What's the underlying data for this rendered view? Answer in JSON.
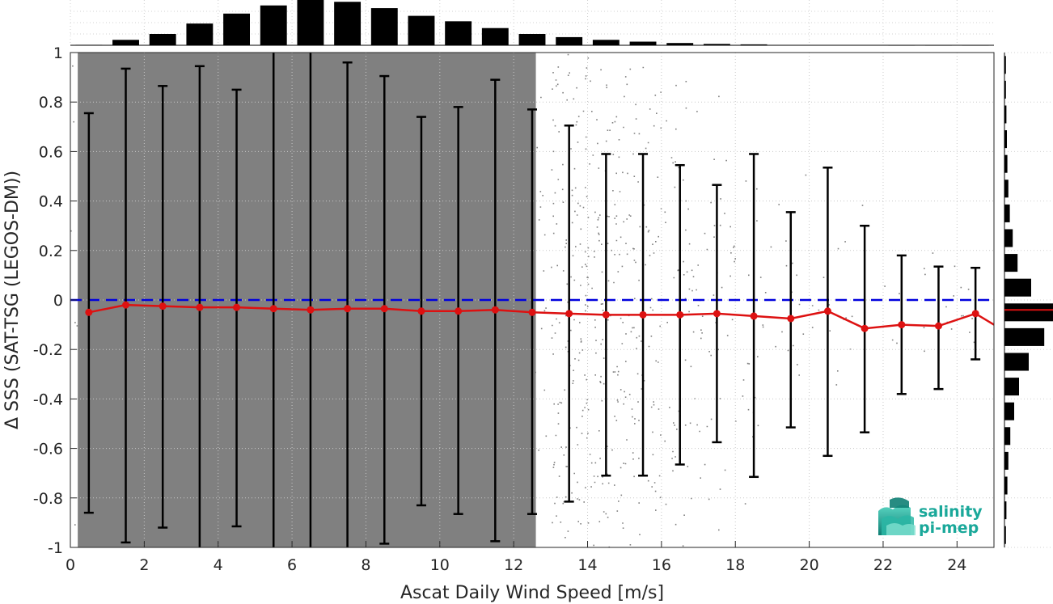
{
  "chart_data": {
    "type": "scatter",
    "xlabel": "Ascat Daily Wind Speed [m/s]",
    "ylabel": "Δ SSS (SAT-TSG (LEGOS-DM))",
    "xlim": [
      0,
      25
    ],
    "ylim": [
      -1,
      1
    ],
    "xticks": [
      0,
      2,
      4,
      6,
      8,
      10,
      12,
      14,
      16,
      18,
      20,
      22,
      24
    ],
    "yticks": [
      -1,
      -0.8,
      -0.6,
      -0.4,
      -0.2,
      0,
      0.2,
      0.4,
      0.6,
      0.8,
      1
    ],
    "ytick_labels": [
      "-1",
      "-0.8",
      "-0.6",
      "-0.4",
      "-0.2",
      "0",
      "0.2",
      "0.4",
      "0.6",
      "0.8",
      "1"
    ],
    "grid": true,
    "zero_line": {
      "y": 0,
      "color": "#0000dd",
      "style": "dashed"
    },
    "scatter_color": "#808080",
    "binned_series": {
      "color": "#dd1111",
      "x": [
        0.5,
        1.5,
        2.5,
        3.5,
        4.5,
        5.5,
        6.5,
        7.5,
        8.5,
        9.5,
        10.5,
        11.5,
        12.5,
        13.5,
        14.5,
        15.5,
        16.5,
        17.5,
        18.5,
        19.5,
        20.5,
        21.5,
        22.5,
        23.5,
        24.5
      ],
      "mean": [
        -0.05,
        -0.02,
        -0.025,
        -0.03,
        -0.03,
        -0.035,
        -0.04,
        -0.035,
        -0.035,
        -0.045,
        -0.045,
        -0.04,
        -0.05,
        -0.055,
        -0.06,
        -0.06,
        -0.06,
        -0.055,
        -0.065,
        -0.075,
        -0.045,
        -0.115,
        -0.1,
        -0.105,
        -0.055
      ],
      "err_low": [
        -0.86,
        -0.98,
        -0.92,
        -1.0,
        -0.915,
        -1.0,
        -1.0,
        -1.0,
        -0.985,
        -0.83,
        -0.865,
        -0.975,
        -0.865,
        -0.815,
        -0.71,
        -0.71,
        -0.665,
        -0.575,
        -0.715,
        -0.515,
        -0.63,
        -0.535,
        -0.38,
        -0.36,
        -0.24
      ],
      "err_high": [
        0.755,
        0.935,
        0.865,
        0.945,
        0.85,
        1.0,
        1.0,
        0.96,
        0.905,
        0.74,
        0.78,
        0.89,
        0.77,
        0.705,
        0.59,
        0.59,
        0.545,
        0.465,
        0.59,
        0.355,
        0.535,
        0.3,
        0.18,
        0.135,
        0.13
      ]
    },
    "top_histogram": {
      "color": "#000000",
      "x": [
        0.5,
        1.5,
        2.5,
        3.5,
        4.5,
        5.5,
        6.5,
        7.5,
        8.5,
        9.5,
        10.5,
        11.5,
        12.5,
        13.5,
        14.5,
        15.5,
        16.5,
        17.5,
        18.5,
        19.5,
        20.5,
        21.5,
        22.5,
        23.5,
        24.5
      ],
      "rel_count": [
        0.01,
        0.12,
        0.25,
        0.48,
        0.7,
        0.88,
        1.0,
        0.96,
        0.82,
        0.65,
        0.53,
        0.38,
        0.25,
        0.18,
        0.12,
        0.08,
        0.05,
        0.03,
        0.02,
        0.005,
        0.003,
        0.002,
        0.001,
        0.001,
        0.001
      ]
    },
    "right_histogram": {
      "color": "#000000",
      "median_color": "#dd1111",
      "median_y": -0.04,
      "y": [
        -0.95,
        -0.85,
        -0.75,
        -0.65,
        -0.55,
        -0.45,
        -0.35,
        -0.25,
        -0.15,
        -0.05,
        0.05,
        0.15,
        0.25,
        0.35,
        0.45,
        0.55,
        0.65,
        0.75,
        0.85,
        0.95
      ],
      "rel_count": [
        0.03,
        0.04,
        0.06,
        0.08,
        0.12,
        0.2,
        0.3,
        0.5,
        0.82,
        1.0,
        0.55,
        0.27,
        0.17,
        0.11,
        0.08,
        0.06,
        0.05,
        0.04,
        0.03,
        0.03
      ]
    }
  },
  "logo": {
    "line1": "salinity",
    "line2": "pi-mep",
    "color": "#1aa89a"
  }
}
